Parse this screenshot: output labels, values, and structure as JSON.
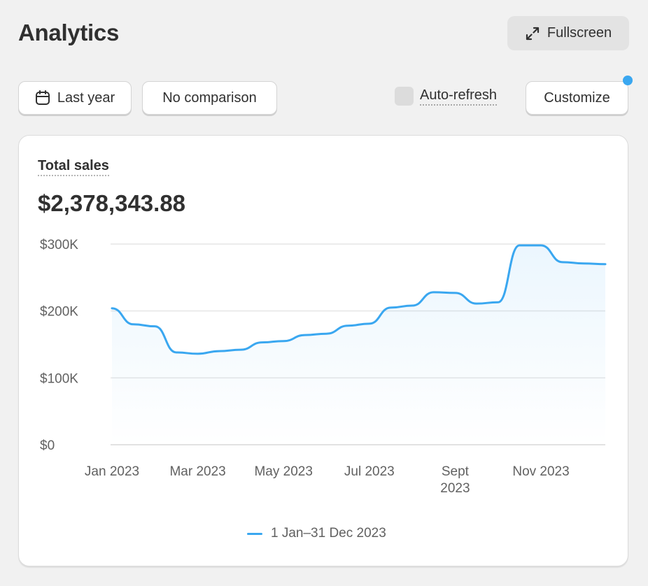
{
  "header": {
    "title": "Analytics",
    "fullscreen_label": "Fullscreen"
  },
  "toolbar": {
    "date_range_label": "Last year",
    "comparison_label": "No comparison",
    "auto_refresh_label": "Auto-refresh",
    "auto_refresh_checked": false,
    "customize_label": "Customize"
  },
  "card": {
    "metric_title": "Total sales",
    "metric_value": "$2,378,343.88"
  },
  "colors": {
    "accent": "#3aa7f0",
    "page_background": "#f1f1f1"
  },
  "icons": {
    "fullscreen": "expand-arrows-icon",
    "date": "calendar-icon"
  },
  "chart_data": {
    "type": "area",
    "title": "",
    "xlabel": "",
    "ylabel": "",
    "ylim": [
      0,
      300000
    ],
    "y_ticks": [
      {
        "value": 300000,
        "label": "$300K"
      },
      {
        "value": 200000,
        "label": "$200K"
      },
      {
        "value": 100000,
        "label": "$100K"
      },
      {
        "value": 0,
        "label": "$0"
      }
    ],
    "x_ticks": [
      {
        "index": 0,
        "label": [
          "Jan 2023"
        ]
      },
      {
        "index": 4,
        "label": [
          "Mar 2023"
        ]
      },
      {
        "index": 8,
        "label": [
          "May 2023"
        ]
      },
      {
        "index": 12,
        "label": [
          "Jul 2023"
        ]
      },
      {
        "index": 16,
        "label": [
          "Sept",
          "2023"
        ]
      },
      {
        "index": 20,
        "label": [
          "Nov 2023"
        ]
      }
    ],
    "grid": true,
    "legend_position": "bottom-center",
    "series": [
      {
        "name": "1 Jan–31 Dec 2023",
        "color": "#3aa7f0",
        "x": [
          "Jan 1",
          "Jan 15",
          "Feb 1",
          "Feb 15",
          "Mar 1",
          "Mar 15",
          "Apr 1",
          "Apr 15",
          "May 1",
          "May 15",
          "Jun 1",
          "Jun 15",
          "Jul 1",
          "Jul 15",
          "Aug 1",
          "Aug 15",
          "Sept 1",
          "Sept 15",
          "Oct 1",
          "Oct 15",
          "Nov 1",
          "Nov 15",
          "Dec 1",
          "Dec 15"
        ],
        "values": [
          204000,
          180000,
          177000,
          138000,
          136000,
          140000,
          142000,
          153000,
          155000,
          164000,
          166000,
          178000,
          181000,
          205000,
          208000,
          228000,
          227000,
          211000,
          213000,
          298000,
          298000,
          273000,
          271000,
          270000
        ]
      }
    ]
  }
}
